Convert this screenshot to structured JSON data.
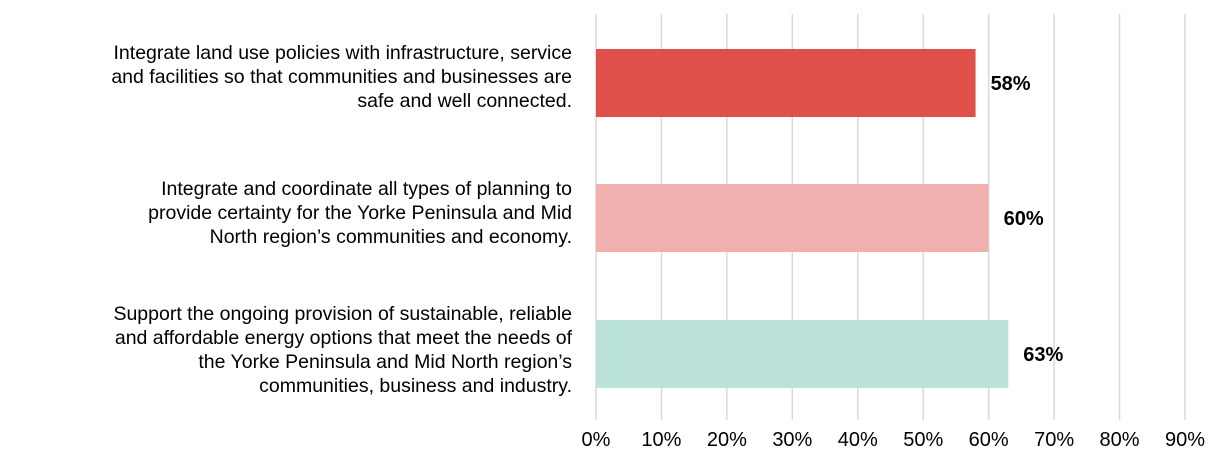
{
  "chart_data": {
    "type": "bar",
    "orientation": "horizontal",
    "categories": [
      "Integrate land use policies with infrastructure, service\nand facilities so that communities and businesses are\nsafe and well connected.",
      "Integrate and coordinate all types of planning to\nprovide certainty for the Yorke Peninsula and Mid\nNorth region’s communities and economy.",
      "Support the ongoing provision of sustainable, reliable\nand affordable energy options that meet the needs of\nthe Yorke Peninsula and Mid North region’s\ncommunities, business and industry."
    ],
    "values": [
      58,
      60,
      63
    ],
    "data_labels": [
      "58%",
      "60%",
      "63%"
    ],
    "bar_colors": [
      "#e0504a",
      "#f0b0b0",
      "#bce3db"
    ],
    "xlim": [
      0,
      90
    ],
    "xticks": [
      0,
      10,
      20,
      30,
      40,
      50,
      60,
      70,
      80,
      90
    ],
    "xtick_labels": [
      "0%",
      "10%",
      "20%",
      "30%",
      "40%",
      "50%",
      "60%",
      "70%",
      "80%",
      "90%"
    ],
    "grid": "vertical",
    "grid_color": "#d9d9d9",
    "legend": "none",
    "title": "",
    "xlabel": "",
    "ylabel": ""
  }
}
